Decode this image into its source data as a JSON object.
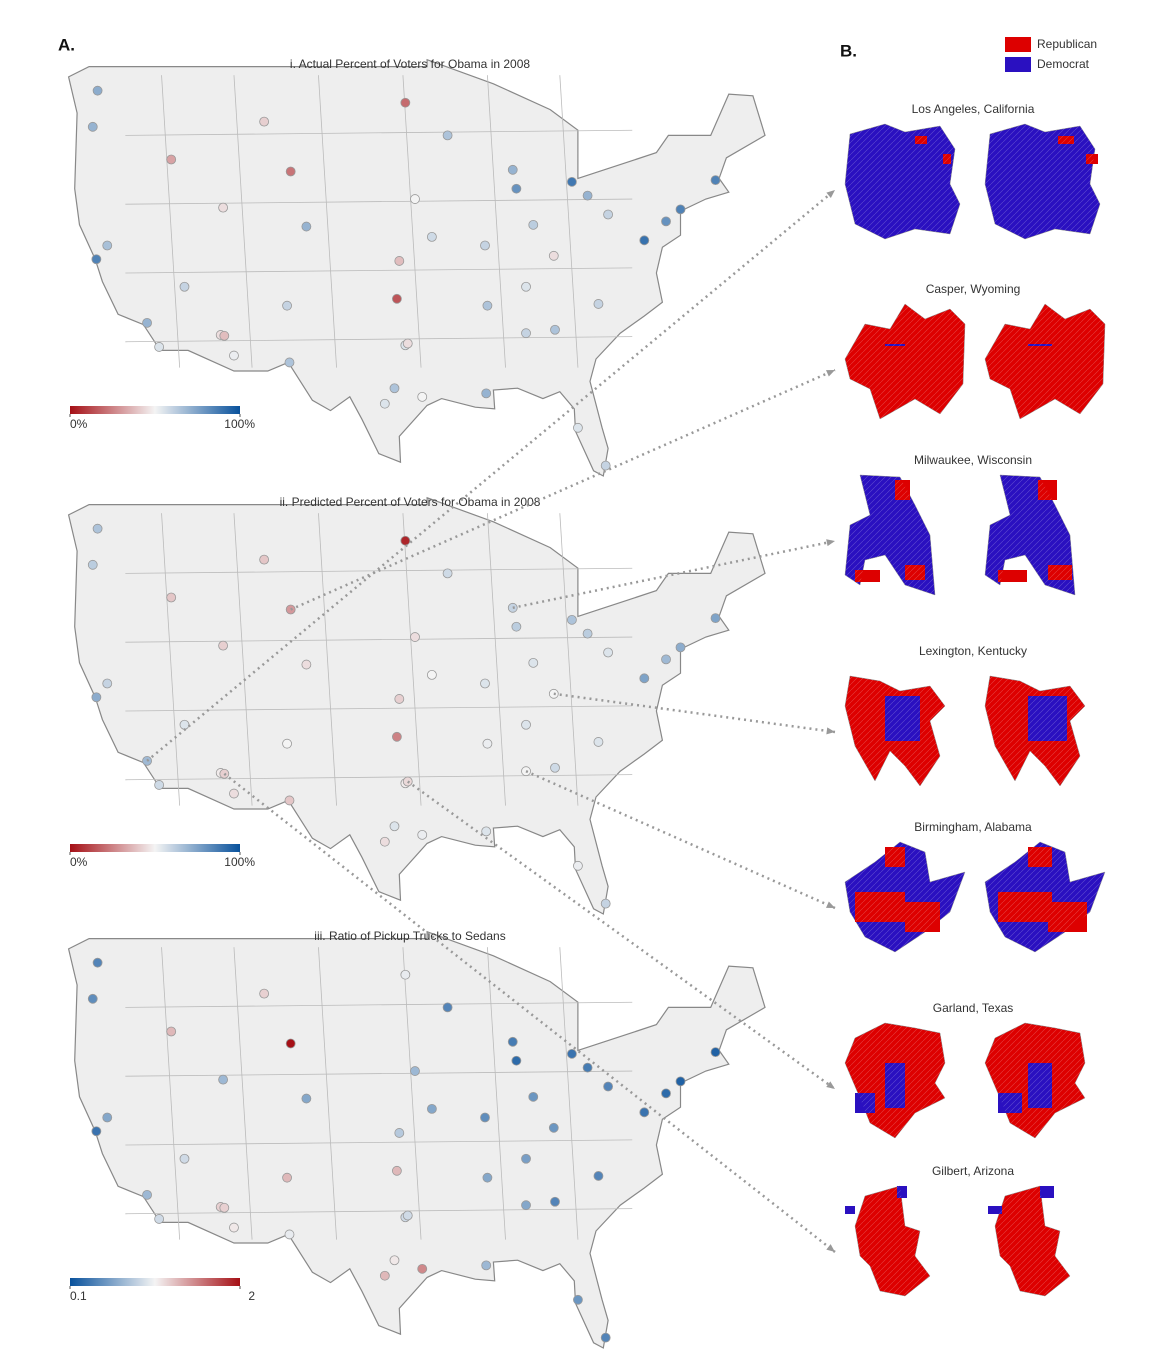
{
  "panel_a": {
    "label": "A.",
    "maps": [
      {
        "title": "i. Actual  Percent of Voters for Obama in 2008",
        "colorbar": {
          "colors": [
            "#a50f15",
            "#f4f4f4",
            "#08519c"
          ],
          "ticks": [
            {
              "value": 0,
              "label": "0%"
            },
            {
              "value": 100,
              "label": "100%"
            }
          ]
        },
        "points": {
          "lon": [
            -122.3,
            -122.7,
            -122.4,
            -121.5,
            -118.2,
            -117.2,
            -112.1,
            -111,
            -111.8,
            -115.1,
            -116.2,
            -111.9,
            -106.3,
            -105,
            -106.6,
            -108.5,
            -96.8,
            -93.3,
            -96,
            -97.3,
            -97.5,
            -96.8,
            -96.6,
            -95.4,
            -98.5,
            -97.7,
            -106.4,
            -87.6,
            -87.9,
            -83,
            -81.7,
            -84.5,
            -86.8,
            -90,
            -84.4,
            -86.8,
            -80.8,
            -77,
            -75.2,
            -74,
            -71.1,
            -80.2,
            -82.5,
            -90.1,
            -90.2,
            -94.6,
            -86.2,
            -80
          ],
          "lat": [
            47.6,
            45.5,
            37.8,
            38.6,
            34.1,
            32.7,
            33.4,
            32.2,
            33.35,
            36.2,
            43.6,
            40.8,
            42.9,
            39.7,
            35.1,
            45.8,
            46.9,
            45,
            41.3,
            37.7,
            35.5,
            32.8,
            32.9,
            29.8,
            29.4,
            30.3,
            31.8,
            41.9,
            43,
            42.3,
            41.5,
            38,
            36.2,
            35.1,
            33.7,
            33.5,
            35.2,
            38.9,
            40,
            40.7,
            42.4,
            25.8,
            28,
            30,
            38.6,
            39.1,
            39.8,
            40.4
          ],
          "values": [
            72,
            70,
            85,
            66,
            70,
            55,
            45,
            52,
            38,
            60,
            32,
            45,
            22,
            70,
            60,
            42,
            20,
            65,
            50,
            38,
            15,
            55,
            45,
            50,
            55,
            65,
            65,
            80,
            70,
            88,
            70,
            45,
            55,
            65,
            65,
            60,
            60,
            90,
            80,
            85,
            85,
            60,
            55,
            70,
            60,
            58,
            62,
            60
          ]
        }
      },
      {
        "title": "ii. Predicted Percent of Voters for Obama in 2008",
        "colorbar": {
          "colors": [
            "#a50f15",
            "#f4f4f4",
            "#08519c"
          ],
          "ticks": [
            {
              "value": 0,
              "label": "0%"
            },
            {
              "value": 100,
              "label": "100%"
            }
          ]
        },
        "points": {
          "lon": [
            -122.3,
            -122.7,
            -122.4,
            -121.5,
            -118.2,
            -117.2,
            -112.1,
            -111,
            -111.8,
            -115.1,
            -116.2,
            -111.9,
            -106.3,
            -105,
            -106.6,
            -108.5,
            -96.8,
            -93.3,
            -96,
            -97.3,
            -97.5,
            -96.8,
            -96.6,
            -95.4,
            -98.5,
            -97.7,
            -106.4,
            -87.6,
            -87.9,
            -83,
            -81.7,
            -84.5,
            -86.8,
            -90,
            -84.4,
            -86.8,
            -80.8,
            -77,
            -75.2,
            -74,
            -71.1,
            -80.2,
            -82.5,
            -90.1,
            -90.2,
            -94.6,
            -86.2,
            -80
          ],
          "lat": [
            47.6,
            45.5,
            37.8,
            38.6,
            34.1,
            32.7,
            33.4,
            32.2,
            33.35,
            36.2,
            43.6,
            40.8,
            42.9,
            39.7,
            35.1,
            45.8,
            46.9,
            45,
            41.3,
            37.7,
            35.5,
            32.8,
            32.9,
            29.8,
            29.4,
            30.3,
            31.8,
            41.9,
            43,
            42.3,
            41.5,
            38,
            36.2,
            35.1,
            33.7,
            33.5,
            35.2,
            38.9,
            40,
            40.7,
            42.4,
            25.8,
            28,
            30,
            38.6,
            39.1,
            39.8,
            40.4
          ],
          "values": [
            65,
            62,
            72,
            60,
            68,
            58,
            48,
            45,
            42,
            55,
            40,
            42,
            30,
            45,
            50,
            40,
            5,
            58,
            45,
            42,
            25,
            48,
            44,
            52,
            45,
            55,
            40,
            62,
            60,
            65,
            62,
            50,
            55,
            52,
            58,
            50,
            55,
            75,
            68,
            72,
            75,
            60,
            52,
            55,
            55,
            50,
            55,
            55
          ]
        }
      },
      {
        "title": "iii. Ratio of Pickup Trucks to Sedans",
        "colorbar": {
          "colors": [
            "#08519c",
            "#f4f4f4",
            "#a50f15"
          ],
          "ticks": [
            0.1,
            2
          ]
        },
        "points": {
          "lon": [
            -122.3,
            -122.7,
            -122.4,
            -121.5,
            -118.2,
            -117.2,
            -112.1,
            -111,
            -111.8,
            -115.1,
            -116.2,
            -111.9,
            -106.3,
            -105,
            -106.6,
            -108.5,
            -96.8,
            -93.3,
            -96,
            -97.3,
            -97.5,
            -96.8,
            -96.6,
            -95.4,
            -98.5,
            -97.7,
            -106.4,
            -87.6,
            -87.9,
            -83,
            -81.7,
            -84.5,
            -86.8,
            -90,
            -84.4,
            -86.8,
            -80.8,
            -77,
            -75.2,
            -74,
            -71.1,
            -80.2,
            -82.5,
            -90.1,
            -90.2,
            -94.6,
            -86.2,
            -80
          ],
          "lat": [
            47.6,
            45.5,
            37.8,
            38.6,
            34.1,
            32.7,
            33.4,
            32.2,
            33.35,
            36.2,
            43.6,
            40.8,
            42.9,
            39.7,
            35.1,
            45.8,
            46.9,
            45,
            41.3,
            37.7,
            35.5,
            32.8,
            32.9,
            29.8,
            29.4,
            30.3,
            31.8,
            41.9,
            43,
            42.3,
            41.5,
            38,
            36.2,
            35.1,
            33.7,
            33.5,
            35.2,
            38.9,
            40,
            40.7,
            42.4,
            25.8,
            28,
            30,
            38.6,
            39.1,
            39.8,
            40.4
          ],
          "values": [
            0.4,
            0.45,
            0.3,
            0.6,
            0.7,
            0.9,
            1.2,
            1.1,
            1.2,
            0.9,
            1.3,
            0.7,
            2,
            0.6,
            1.3,
            1.2,
            1.0,
            0.4,
            0.7,
            0.8,
            1.3,
            0.9,
            0.9,
            1.5,
            1.3,
            1.1,
            1.0,
            0.25,
            0.35,
            0.3,
            0.35,
            0.5,
            0.55,
            0.6,
            0.4,
            0.6,
            0.4,
            0.3,
            0.25,
            0.2,
            0.2,
            0.4,
            0.5,
            0.7,
            0.45,
            0.6,
            0.5,
            0.4
          ]
        }
      }
    ]
  },
  "panel_b": {
    "label": "B.",
    "legend": [
      {
        "name": "Republican",
        "color": "#dd0000"
      },
      {
        "name": "Democrat",
        "color": "#2a10c0"
      }
    ],
    "cities": [
      "Los Angeles, California",
      "Casper, Wyoming",
      "Milwaukee, Wisconsin",
      "Lexington, Kentucky",
      "Birmingham, Alabama",
      "Garland, Texas",
      "Gilbert, Arizona"
    ]
  }
}
